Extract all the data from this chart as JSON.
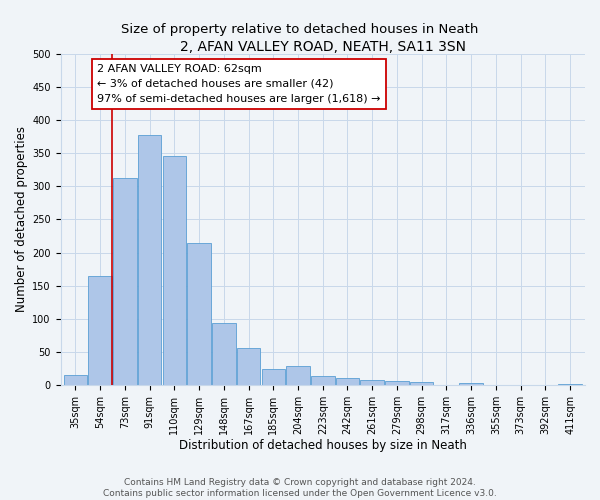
{
  "title": "2, AFAN VALLEY ROAD, NEATH, SA11 3SN",
  "subtitle": "Size of property relative to detached houses in Neath",
  "xlabel": "Distribution of detached houses by size in Neath",
  "ylabel": "Number of detached properties",
  "bar_labels": [
    "35sqm",
    "54sqm",
    "73sqm",
    "91sqm",
    "110sqm",
    "129sqm",
    "148sqm",
    "167sqm",
    "185sqm",
    "204sqm",
    "223sqm",
    "242sqm",
    "261sqm",
    "279sqm",
    "298sqm",
    "317sqm",
    "336sqm",
    "355sqm",
    "373sqm",
    "392sqm",
    "411sqm"
  ],
  "bar_values": [
    15,
    165,
    313,
    378,
    346,
    215,
    94,
    55,
    24,
    29,
    14,
    10,
    8,
    6,
    4,
    0,
    3,
    0,
    0,
    0,
    2
  ],
  "bar_color": "#aec6e8",
  "bar_edge_color": "#5a9fd4",
  "ylim": [
    0,
    500
  ],
  "yticks": [
    0,
    50,
    100,
    150,
    200,
    250,
    300,
    350,
    400,
    450,
    500
  ],
  "property_line_color": "#cc0000",
  "annotation_line1": "2 AFAN VALLEY ROAD: 62sqm",
  "annotation_line2": "← 3% of detached houses are smaller (42)",
  "annotation_line3": "97% of semi-detached houses are larger (1,618) →",
  "footer_line1": "Contains HM Land Registry data © Crown copyright and database right 2024.",
  "footer_line2": "Contains public sector information licensed under the Open Government Licence v3.0.",
  "background_color": "#f0f4f8",
  "grid_color": "#c8d8ea",
  "title_fontsize": 10,
  "subtitle_fontsize": 9.5,
  "axis_label_fontsize": 8.5,
  "tick_fontsize": 7,
  "footer_fontsize": 6.5
}
